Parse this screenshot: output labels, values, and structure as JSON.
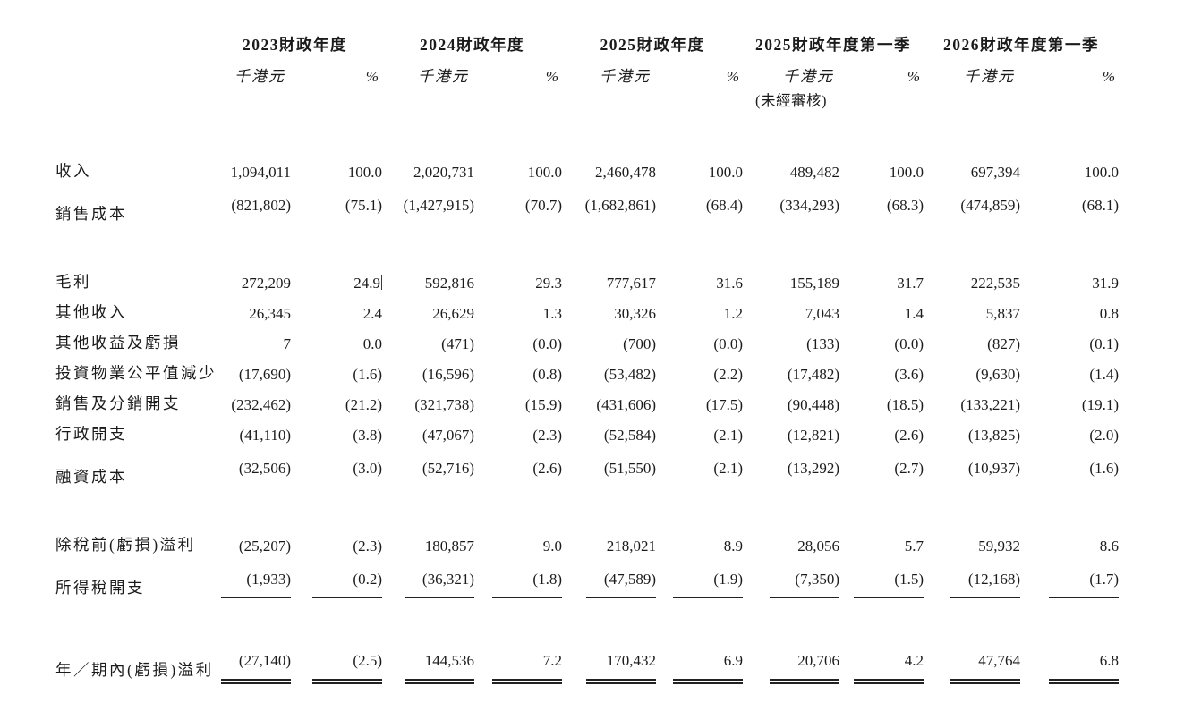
{
  "page": {
    "background": "#ffffff",
    "text_color": "#1b1b1b",
    "rule_color": "#222222"
  },
  "table": {
    "column_groups": [
      {
        "title": "2023財政年度",
        "unit": "千港元",
        "pct": "%",
        "note": ""
      },
      {
        "title": "2024財政年度",
        "unit": "千港元",
        "pct": "%",
        "note": ""
      },
      {
        "title": "2025財政年度",
        "unit": "千港元",
        "pct": "%",
        "note": ""
      },
      {
        "title": "2025財政年度第一季",
        "unit": "千港元",
        "pct": "%",
        "note": "(未經審核)"
      },
      {
        "title": "2026財政年度第一季",
        "unit": "千港元",
        "pct": "%",
        "note": ""
      }
    ],
    "rows": [
      {
        "label": "收入",
        "values": [
          "1,094,011",
          "100.0",
          "2,020,731",
          "100.0",
          "2,460,478",
          "100.0",
          "489,482",
          "100.0",
          "697,394",
          "100.0"
        ]
      },
      {
        "label": "銷售成本",
        "underline": "single",
        "values": [
          "(821,802)",
          "(75.1)",
          "(1,427,915)",
          "(70.7)",
          "(1,682,861)",
          "(68.4)",
          "(334,293)",
          "(68.3)",
          "(474,859)",
          "(68.1)"
        ]
      },
      {
        "label": "毛利",
        "gap_before": true,
        "cursor_after_col": 1,
        "values": [
          "272,209",
          "24.9",
          "592,816",
          "29.3",
          "777,617",
          "31.6",
          "155,189",
          "31.7",
          "222,535",
          "31.9"
        ]
      },
      {
        "label": "其他收入",
        "values": [
          "26,345",
          "2.4",
          "26,629",
          "1.3",
          "30,326",
          "1.2",
          "7,043",
          "1.4",
          "5,837",
          "0.8"
        ]
      },
      {
        "label": "其他收益及虧損",
        "values": [
          "7",
          "0.0",
          "(471)",
          "(0.0)",
          "(700)",
          "(0.0)",
          "(133)",
          "(0.0)",
          "(827)",
          "(0.1)"
        ]
      },
      {
        "label": "投資物業公平值減少",
        "values": [
          "(17,690)",
          "(1.6)",
          "(16,596)",
          "(0.8)",
          "(53,482)",
          "(2.2)",
          "(17,482)",
          "(3.6)",
          "(9,630)",
          "(1.4)"
        ]
      },
      {
        "label": "銷售及分銷開支",
        "values": [
          "(232,462)",
          "(21.2)",
          "(321,738)",
          "(15.9)",
          "(431,606)",
          "(17.5)",
          "(90,448)",
          "(18.5)",
          "(133,221)",
          "(19.1)"
        ]
      },
      {
        "label": "行政開支",
        "values": [
          "(41,110)",
          "(3.8)",
          "(47,067)",
          "(2.3)",
          "(52,584)",
          "(2.1)",
          "(12,821)",
          "(2.6)",
          "(13,825)",
          "(2.0)"
        ]
      },
      {
        "label": "融資成本",
        "underline": "single",
        "values": [
          "(32,506)",
          "(3.0)",
          "(52,716)",
          "(2.6)",
          "(51,550)",
          "(2.1)",
          "(13,292)",
          "(2.7)",
          "(10,937)",
          "(1.6)"
        ]
      },
      {
        "label": "除稅前(虧損)溢利",
        "gap_before": true,
        "values": [
          "(25,207)",
          "(2.3)",
          "180,857",
          "9.0",
          "218,021",
          "8.9",
          "28,056",
          "5.7",
          "59,932",
          "8.6"
        ]
      },
      {
        "label": "所得稅開支",
        "underline": "single",
        "values": [
          "(1,933)",
          "(0.2)",
          "(36,321)",
          "(1.8)",
          "(47,589)",
          "(1.9)",
          "(7,350)",
          "(1.5)",
          "(12,168)",
          "(1.7)"
        ]
      },
      {
        "label": "年／期內(虧損)溢利",
        "gap_before": true,
        "underline": "double",
        "values": [
          "(27,140)",
          "(2.5)",
          "144,536",
          "7.2",
          "170,432",
          "6.9",
          "20,706",
          "4.2",
          "47,764",
          "6.8"
        ]
      }
    ]
  }
}
